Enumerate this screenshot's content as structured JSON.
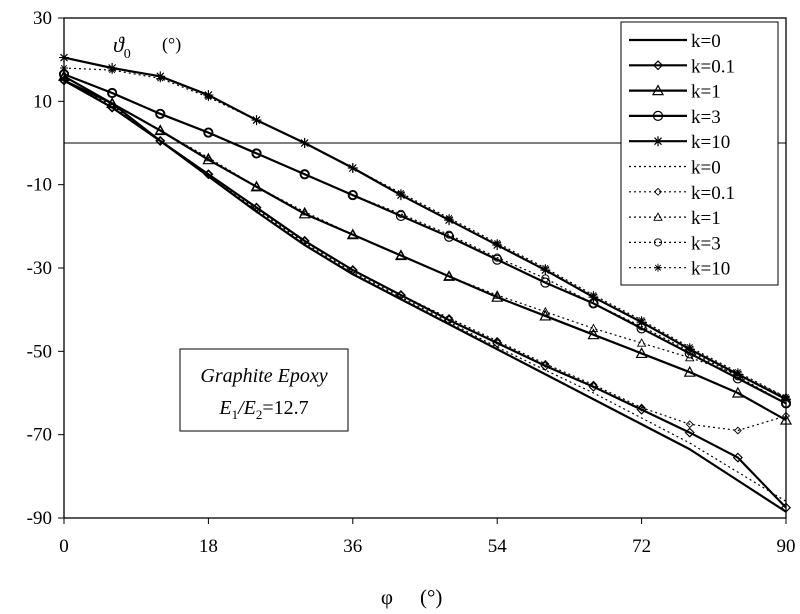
{
  "chart_data": {
    "type": "line",
    "xlabel": "φ",
    "xunit": "(°)",
    "ylabel": "ϑ",
    "ylabel_sub": "0",
    "yunit": "(°)",
    "xlim": [
      0,
      90
    ],
    "ylim": [
      -90,
      30
    ],
    "xticks": [
      0,
      18,
      36,
      54,
      72,
      90
    ],
    "yticks": [
      30,
      10,
      -10,
      -30,
      -50,
      -70,
      -90
    ],
    "grid": false,
    "reference_line_y": 0,
    "legend_position": "top-right",
    "annotation": {
      "line1": "Graphite Epoxy",
      "line2_prefix": "E",
      "line2_sub1": "1",
      "line2_mid": "/E",
      "line2_sub2": "2",
      "line2_suffix": "=12.7"
    },
    "x": [
      0,
      6,
      12,
      18,
      24,
      30,
      36,
      42,
      48,
      54,
      60,
      66,
      72,
      78,
      84,
      90
    ],
    "series": [
      {
        "name": "k=0",
        "style": "solid",
        "marker": "none",
        "values": [
          15,
          9.5,
          0.5,
          -8,
          -16.5,
          -24.5,
          -31.5,
          -37.5,
          -43.5,
          -49.5,
          -55.5,
          -61.5,
          -67.5,
          -73.5,
          -81,
          -88.5
        ]
      },
      {
        "name": "k=0.1",
        "style": "solid",
        "marker": "diamond",
        "values": [
          15,
          8.5,
          0.5,
          -7.5,
          -15.5,
          -23.5,
          -30.5,
          -36.5,
          -42.5,
          -48,
          -53.5,
          -58.5,
          -64,
          -69.5,
          -75.5,
          -87.5
        ]
      },
      {
        "name": "k=1",
        "style": "solid",
        "marker": "triangle",
        "values": [
          16,
          9.5,
          3,
          -4,
          -10.5,
          -17,
          -22,
          -27,
          -32,
          -37,
          -41.5,
          -46,
          -50.5,
          -55,
          -60,
          -66.5
        ]
      },
      {
        "name": "k=3",
        "style": "solid",
        "marker": "circle",
        "values": [
          16.5,
          12,
          7,
          2.5,
          -2.5,
          -7.5,
          -12.5,
          -17.5,
          -22.5,
          -28,
          -33.5,
          -38.5,
          -44.5,
          -50.5,
          -56.5,
          -62.5
        ]
      },
      {
        "name": "k=10",
        "style": "solid",
        "marker": "star",
        "values": [
          20.5,
          18,
          16,
          11.5,
          5.5,
          0,
          -6,
          -12.5,
          -18.5,
          -24.5,
          -30.5,
          -37,
          -43,
          -49.5,
          -55.5,
          -61.5
        ]
      },
      {
        "name": "k=0",
        "style": "dotted",
        "marker": "none",
        "values": [
          15,
          9,
          0.5,
          -8,
          -16,
          -24,
          -31,
          -37,
          -43,
          -49,
          -54.5,
          -60,
          -66,
          -72,
          -79,
          -86
        ]
      },
      {
        "name": "k=0.1",
        "style": "dotted",
        "marker": "diamond",
        "values": [
          15,
          8.5,
          0.5,
          -7.5,
          -15.5,
          -23.5,
          -30.5,
          -36.5,
          -42,
          -47.5,
          -53,
          -58,
          -63.5,
          -67.5,
          -69,
          -65.5
        ]
      },
      {
        "name": "k=1",
        "style": "dotted",
        "marker": "triangle",
        "values": [
          16,
          9.5,
          3,
          -3.5,
          -10.5,
          -16.5,
          -22,
          -27,
          -32,
          -36.5,
          -40.5,
          -44.5,
          -48,
          -51.5,
          -55.5,
          -61
        ]
      },
      {
        "name": "k=3",
        "style": "dotted",
        "marker": "circle",
        "values": [
          16.5,
          12,
          7,
          2.5,
          -2.5,
          -7.5,
          -12.5,
          -17,
          -22,
          -27.5,
          -32.5,
          -38.5,
          -44,
          -50,
          -56,
          -62.5
        ]
      },
      {
        "name": "k=10",
        "style": "dotted",
        "marker": "star",
        "values": [
          18,
          17.5,
          15.5,
          11,
          5.5,
          0,
          -6,
          -12,
          -18,
          -24,
          -30,
          -36.5,
          -42.5,
          -49,
          -55,
          -61
        ]
      }
    ]
  }
}
